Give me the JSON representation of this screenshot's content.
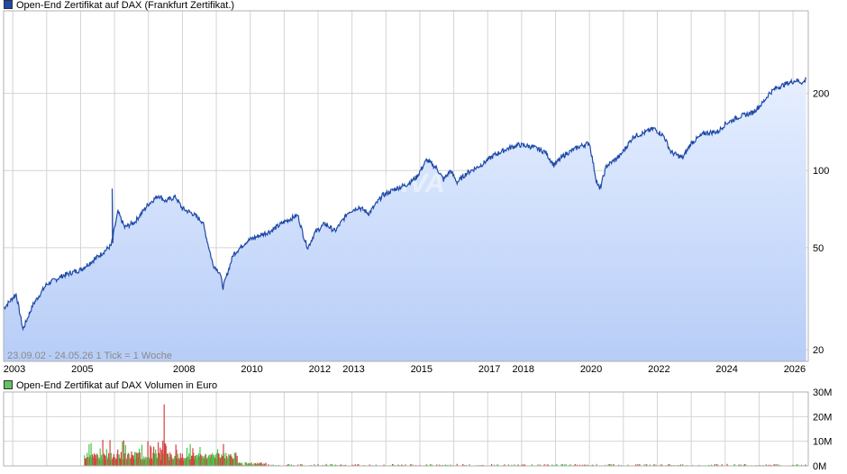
{
  "legend_price": "Open-End Zertifikat auf DAX  (Frankfurt Zertifikat.)",
  "legend_volume": "Open-End Zertifikat auf DAX  Volumen in Euro",
  "range_note": "23.09.02 - 24.05.26   1 Tick = 1 Woche",
  "watermark": "ARIVA",
  "colors": {
    "line": "#1f4aa8",
    "fill_top": "#e6efff",
    "fill_bottom": "#b7cdf7",
    "vol_green": "#4cc34c",
    "vol_red": "#d94040",
    "grid": "#d4d4d4"
  },
  "chart_data": [
    {
      "type": "line",
      "scale": "log",
      "x_ticks": [
        "2003",
        "2005",
        "2008",
        "2010",
        "2012",
        "2013",
        "2015",
        "2017",
        "2018",
        "2020",
        "2022",
        "2024",
        "2026"
      ],
      "y_ticks": [
        "20",
        "50",
        "100",
        "200"
      ],
      "ylim": [
        18,
        420
      ],
      "x": [
        2002.73,
        2003.1,
        2003.3,
        2003.6,
        2004.0,
        2004.5,
        2005.0,
        2005.5,
        2005.9,
        2006.1,
        2006.3,
        2006.6,
        2007.0,
        2007.3,
        2007.5,
        2007.8,
        2008.0,
        2008.3,
        2008.6,
        2008.9,
        2009.1,
        2009.2,
        2009.5,
        2009.9,
        2010.3,
        2010.6,
        2011.0,
        2011.4,
        2011.6,
        2011.7,
        2011.9,
        2012.2,
        2012.5,
        2012.9,
        2013.2,
        2013.5,
        2013.9,
        2014.3,
        2014.6,
        2014.9,
        2015.2,
        2015.5,
        2015.7,
        2015.9,
        2016.1,
        2016.4,
        2016.8,
        2017.2,
        2017.6,
        2017.9,
        2018.3,
        2018.7,
        2018.95,
        2019.3,
        2019.7,
        2020.0,
        2020.2,
        2020.3,
        2020.5,
        2020.9,
        2021.3,
        2021.6,
        2021.9,
        2022.2,
        2022.4,
        2022.75,
        2023.0,
        2023.4,
        2023.8,
        2024.0,
        2024.4,
        2024.8,
        2025.1,
        2025.3,
        2025.5,
        2025.8,
        2026.1,
        2026.3,
        2026.39
      ],
      "series": [
        {
          "values": [
            29,
            33,
            24,
            30,
            36,
            39,
            41,
            46,
            51,
            69,
            60,
            63,
            74,
            80,
            76,
            79,
            71,
            68,
            63,
            43,
            40,
            35,
            47,
            53,
            56,
            58,
            63,
            67,
            54,
            50,
            57,
            62,
            58,
            69,
            72,
            68,
            80,
            85,
            88,
            94,
            110,
            102,
            92,
            100,
            90,
            98,
            105,
            115,
            122,
            126,
            124,
            118,
            105,
            116,
            124,
            128,
            92,
            84,
            104,
            114,
            136,
            140,
            146,
            136,
            118,
            112,
            128,
            140,
            142,
            152,
            162,
            168,
            183,
            200,
            210,
            218,
            225,
            220,
            228
          ]
        }
      ]
    },
    {
      "type": "bar",
      "ylabel": "Volumen in Euro",
      "y_ticks": [
        "0M",
        "10M",
        "20M",
        "30M"
      ],
      "ylim": [
        0,
        30000000
      ],
      "note": "Weekly volume: highest activity 2005-2009 (peak ~25M in 2007), near zero afterwards"
    }
  ]
}
